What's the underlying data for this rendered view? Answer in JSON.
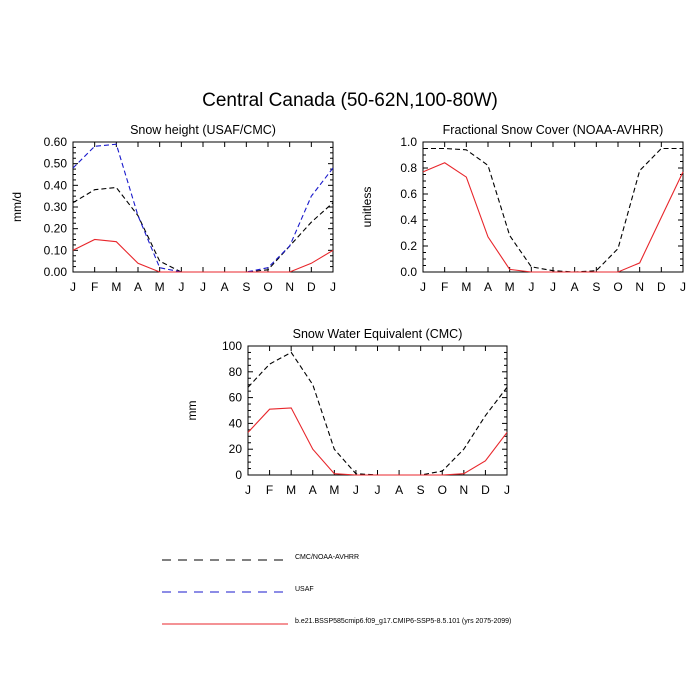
{
  "page": {
    "title": "Central Canada (50-62N,100-80W)"
  },
  "colors": {
    "obs": "#000000",
    "usaf": "#1a1acc",
    "model": "#e8262b"
  },
  "legend": [
    {
      "label": "CMC/NOAA-AVHRR",
      "color": "#000000",
      "dash": true
    },
    {
      "label": "USAF",
      "color": "#1a1acc",
      "dash": true
    },
    {
      "label": "b.e21.BSSP585cmip6.f09_g17.CMIP6-SSP5-8.5.101 (yrs 2075-2099)",
      "color": "#e8262b",
      "dash": false
    }
  ],
  "chart_data": [
    {
      "type": "line",
      "title": "Snow height (USAF/CMC)",
      "ylabel": "mm/d",
      "xlabel": "",
      "categories": [
        "J",
        "F",
        "M",
        "A",
        "M",
        "J",
        "J",
        "A",
        "S",
        "O",
        "N",
        "D",
        "J"
      ],
      "ylim": [
        0,
        0.6
      ],
      "yticks": [
        "0.00",
        "0.10",
        "0.20",
        "0.30",
        "0.40",
        "0.50",
        "0.60"
      ],
      "series": [
        {
          "name": "CMC/NOAA-AVHRR",
          "color": "#000000",
          "dash": true,
          "values": [
            0.32,
            0.38,
            0.39,
            0.26,
            0.05,
            0.0,
            0.0,
            0.0,
            0.0,
            0.01,
            0.12,
            0.23,
            0.32
          ]
        },
        {
          "name": "USAF",
          "color": "#1a1acc",
          "dash": true,
          "values": [
            0.48,
            0.58,
            0.59,
            0.26,
            0.02,
            0.0,
            0.0,
            0.0,
            0.0,
            0.02,
            0.12,
            0.35,
            0.48
          ]
        },
        {
          "name": "b.e21.BSSP585cmip6.f09_g17.CMIP6-SSP5-8.5.101 (yrs 2075-2099)",
          "color": "#e8262b",
          "dash": false,
          "values": [
            0.1,
            0.15,
            0.14,
            0.04,
            0.0,
            0.0,
            0.0,
            0.0,
            0.0,
            0.0,
            0.0,
            0.04,
            0.1
          ]
        }
      ]
    },
    {
      "type": "line",
      "title": "Fractional Snow Cover (NOAA-AVHRR)",
      "ylabel": "unitless",
      "xlabel": "",
      "categories": [
        "J",
        "F",
        "M",
        "A",
        "M",
        "J",
        "J",
        "A",
        "S",
        "O",
        "N",
        "D",
        "J"
      ],
      "ylim": [
        0,
        1.0
      ],
      "yticks": [
        "0.0",
        "0.2",
        "0.4",
        "0.6",
        "0.8",
        "1.0"
      ],
      "series": [
        {
          "name": "CMC/NOAA-AVHRR",
          "color": "#000000",
          "dash": true,
          "values": [
            0.95,
            0.95,
            0.94,
            0.82,
            0.28,
            0.04,
            0.01,
            0.0,
            0.01,
            0.18,
            0.78,
            0.95,
            0.95
          ]
        },
        {
          "name": "b.e21.BSSP585cmip6.f09_g17.CMIP6-SSP5-8.5.101 (yrs 2075-2099)",
          "color": "#e8262b",
          "dash": false,
          "values": [
            0.77,
            0.84,
            0.73,
            0.27,
            0.02,
            0.0,
            0.0,
            0.0,
            0.0,
            0.0,
            0.07,
            0.42,
            0.77
          ]
        }
      ]
    },
    {
      "type": "line",
      "title": "Snow Water Equivalent (CMC)",
      "ylabel": "mm",
      "xlabel": "",
      "categories": [
        "J",
        "F",
        "M",
        "A",
        "M",
        "J",
        "J",
        "A",
        "S",
        "O",
        "N",
        "D",
        "J"
      ],
      "ylim": [
        0,
        100
      ],
      "yticks": [
        "0",
        "20",
        "40",
        "60",
        "80",
        "100"
      ],
      "series": [
        {
          "name": "CMC/NOAA-AVHRR",
          "color": "#000000",
          "dash": true,
          "values": [
            68,
            86,
            95,
            70,
            20,
            1,
            0,
            0,
            0,
            3,
            20,
            46,
            68
          ]
        },
        {
          "name": "b.e21.BSSP585cmip6.f09_g17.CMIP6-SSP5-8.5.101 (yrs 2075-2099)",
          "color": "#e8262b",
          "dash": false,
          "values": [
            33,
            51,
            52,
            20,
            1,
            0,
            0,
            0,
            0,
            0,
            1,
            11,
            33
          ]
        }
      ]
    }
  ]
}
